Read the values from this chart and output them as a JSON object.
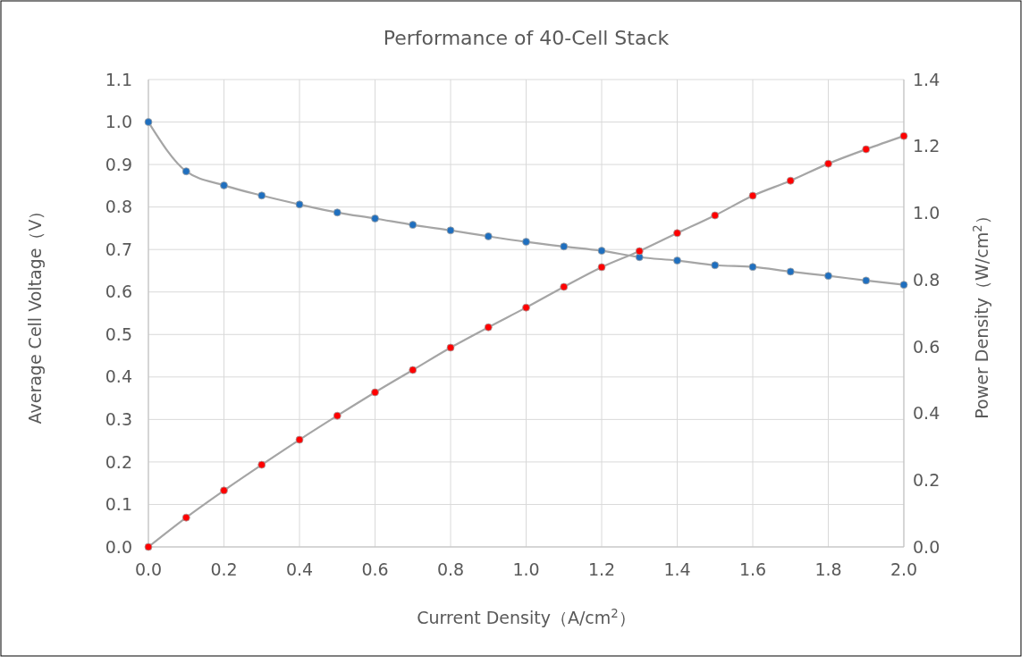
{
  "chart_data": {
    "type": "line",
    "title": "Performance of 40-Cell Stack",
    "xlabel": "Current Density（A/cm$^{2}$）",
    "ylabel": "Average Cell Voltage（V）",
    "y2label": "Power Density（W/cm$^{2}$）",
    "x": [
      0,
      0.1,
      0.2,
      0.3,
      0.4,
      0.5,
      0.6,
      0.7,
      0.8,
      0.9,
      1.0,
      1.1,
      1.2,
      1.3,
      1.4,
      1.5,
      1.6,
      1.7,
      1.8,
      1.9,
      2.0
    ],
    "series": [
      {
        "color": "#1f6fbf",
        "values": [
          1.0,
          0.884,
          0.851,
          0.827,
          0.806,
          0.787,
          0.773,
          0.758,
          0.745,
          0.731,
          0.718,
          0.707,
          0.697,
          0.682,
          0.674,
          0.663,
          0.659,
          0.648,
          0.638,
          0.627,
          0.617
        ]
      },
      {
        "color": "#ff0000",
        "axis": "y2",
        "values": [
          0,
          0.088,
          0.169,
          0.246,
          0.321,
          0.393,
          0.463,
          0.53,
          0.597,
          0.658,
          0.717,
          0.779,
          0.838,
          0.886,
          0.94,
          0.993,
          1.052,
          1.097,
          1.148,
          1.191,
          1.231
        ]
      }
    ],
    "xlim": [
      0,
      2.0
    ],
    "xticks": [
      {
        "value": 0,
        "label": "0.0"
      },
      0.2,
      0.4,
      0.6,
      0.8,
      {
        "value": 1,
        "label": "1.0"
      },
      1.2,
      1.4,
      1.6,
      1.8,
      {
        "value": 2,
        "label": "2.0"
      }
    ],
    "ylim": [
      0,
      1.1
    ],
    "yticks": [
      {
        "value": 0,
        "label": "0.0"
      },
      0.1,
      0.2,
      0.3,
      0.4,
      0.5,
      0.6,
      0.7,
      0.8,
      0.9,
      {
        "value": 1,
        "label": "1.0"
      },
      1.1
    ],
    "y2lim": [
      0,
      1.4
    ],
    "y2ticks": [
      {
        "value": 0,
        "label": "0.0"
      },
      0.2,
      0.4,
      0.6,
      0.8,
      {
        "value": 1,
        "label": "1.0"
      },
      1.2,
      1.4
    ],
    "grid": true,
    "marker": "circle",
    "line_style": "solid"
  }
}
